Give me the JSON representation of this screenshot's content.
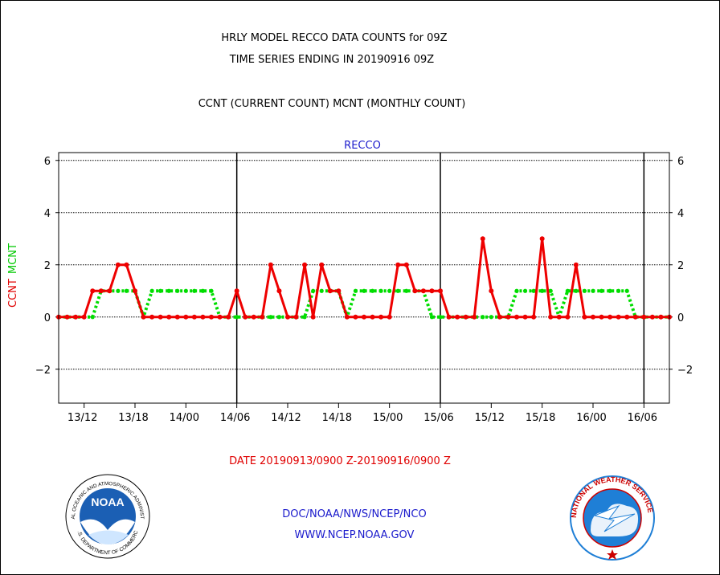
{
  "header": {
    "line1": "HRLY MODEL RECCO DATA COUNTS for 09Z",
    "line2": "TIME SERIES ENDING IN 20190916 09Z",
    "line3": "CCNT (CURRENT COUNT) MCNT (MONTHLY COUNT)"
  },
  "chart_data": {
    "type": "line",
    "title": "RECCO",
    "xlabel": "DATE 20190913/0900 Z-20190916/0900 Z",
    "ylabel_parts": [
      "CCNT",
      "MCNT"
    ],
    "ylim": [
      -3.3,
      6.3
    ],
    "y_ticks": [
      -2,
      0,
      2,
      4,
      6
    ],
    "x_start_hour": 0,
    "x_end_hour": 72,
    "x_ticks": [
      {
        "hour": 3,
        "label": "13/12"
      },
      {
        "hour": 9,
        "label": "13/18"
      },
      {
        "hour": 15,
        "label": "14/00"
      },
      {
        "hour": 21,
        "label": "14/06"
      },
      {
        "hour": 27,
        "label": "14/12"
      },
      {
        "hour": 33,
        "label": "14/18"
      },
      {
        "hour": 39,
        "label": "15/00"
      },
      {
        "hour": 45,
        "label": "15/06"
      },
      {
        "hour": 51,
        "label": "15/12"
      },
      {
        "hour": 57,
        "label": "15/18"
      },
      {
        "hour": 63,
        "label": "16/00"
      },
      {
        "hour": 69,
        "label": "16/06"
      }
    ],
    "day_dividers": [
      21,
      45,
      69
    ],
    "grid_y": true,
    "series": [
      {
        "name": "CCNT",
        "color": "#ee0000",
        "values": [
          0,
          0,
          0,
          0,
          1,
          1,
          1,
          2,
          2,
          1,
          0,
          0,
          0,
          0,
          0,
          0,
          0,
          0,
          0,
          0,
          0,
          1,
          0,
          0,
          0,
          2,
          1,
          0,
          0,
          2,
          0,
          2,
          1,
          1,
          0,
          0,
          0,
          0,
          0,
          0,
          2,
          2,
          1,
          1,
          1,
          1,
          0,
          0,
          0,
          0,
          3,
          1,
          0,
          0,
          0,
          0,
          0,
          3,
          0,
          0,
          0,
          2,
          0,
          0,
          0,
          0,
          0,
          0,
          0,
          0,
          0,
          0,
          0
        ]
      },
      {
        "name": "MCNT",
        "color": "#00dd00",
        "values": [
          0,
          0,
          0,
          0,
          0,
          1,
          1,
          1,
          1,
          1,
          0,
          1,
          1,
          1,
          1,
          1,
          1,
          1,
          1,
          0,
          0,
          0,
          0,
          0,
          0,
          0,
          0,
          0,
          0,
          0,
          1,
          1,
          1,
          1,
          0,
          1,
          1,
          1,
          1,
          1,
          1,
          1,
          1,
          1,
          0,
          0,
          0,
          0,
          0,
          0,
          0,
          0,
          0,
          0,
          1,
          1,
          1,
          1,
          1,
          0,
          1,
          1,
          1,
          1,
          1,
          1,
          1,
          1,
          0,
          0,
          0,
          0,
          0
        ]
      }
    ]
  },
  "footer": {
    "org": "DOC/NOAA/NWS/NCEP/NCO",
    "url": "WWW.NCEP.NOAA.GOV"
  },
  "logos": {
    "noaa_text": "NOAA",
    "noaa_ring_top": "NATIONAL OCEANIC AND ATMOSPHERIC ADMINISTRATION",
    "noaa_ring_bottom": "U.S. DEPARTMENT OF COMMERCE",
    "nws_ring": "NATIONAL WEATHER SERVICE"
  },
  "colors": {
    "red": "#ee0000",
    "green": "#00dd00",
    "blue": "#1a1acc",
    "noaa_blue": "#1b5fb4",
    "nws_blue": "#1f7fd6"
  }
}
